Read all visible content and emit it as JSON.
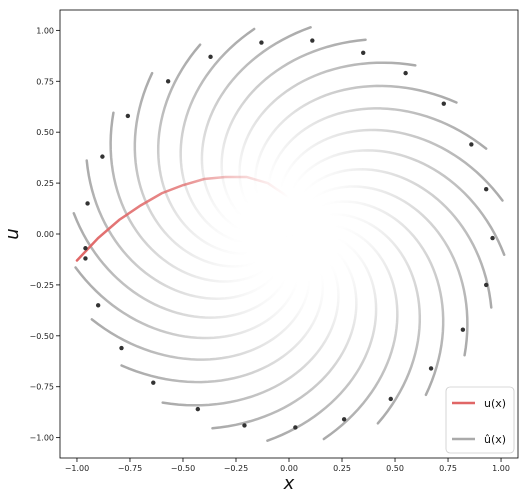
{
  "chart_data": {
    "type": "line",
    "xlabel": "x",
    "ylabel": "u",
    "xlim": [
      -1.08,
      1.08
    ],
    "ylim": [
      -1.1,
      1.1
    ],
    "xticks": [
      -1.0,
      -0.75,
      -0.5,
      -0.25,
      0.0,
      0.25,
      0.5,
      0.75,
      1.0
    ],
    "yticks": [
      -1.0,
      -0.75,
      -0.5,
      -0.25,
      0.0,
      0.25,
      0.5,
      0.75,
      1.0
    ],
    "xtick_labels": [
      "−1.00",
      "−0.75",
      "−0.50",
      "−0.25",
      "0.00",
      "0.25",
      "0.50",
      "0.75",
      "1.00"
    ],
    "ytick_labels": [
      "−1.00",
      "−0.75",
      "−0.50",
      "−0.25",
      "0.00",
      "0.25",
      "0.50",
      "0.75",
      "1.00"
    ],
    "grid": false,
    "legend_position": "lower-right",
    "colors": {
      "true": "#e06666",
      "pred": "#aaaaaa",
      "point": "#333333"
    },
    "series": [
      {
        "name": "u(x)",
        "legend_label": "u(x)",
        "color": "#e06666",
        "x": [
          -1.0,
          -0.9,
          -0.8,
          -0.7,
          -0.6,
          -0.5,
          -0.4,
          -0.3,
          -0.2,
          -0.1,
          0.0
        ],
        "y": [
          -0.13,
          -0.02,
          0.07,
          0.14,
          0.2,
          0.24,
          0.27,
          0.28,
          0.28,
          0.25,
          0.18
        ]
      },
      {
        "name": "û(x)",
        "legend_label": "û(x)",
        "color": "#aaaaaa",
        "description_spiral": {
          "arms": 24,
          "phase_step_deg": 15,
          "twist_total_deg": 115
        }
      }
    ],
    "points": [
      {
        "x": 0.96,
        "y": -0.02
      },
      {
        "x": 0.93,
        "y": 0.22
      },
      {
        "x": 0.86,
        "y": 0.44
      },
      {
        "x": 0.73,
        "y": 0.64
      },
      {
        "x": 0.55,
        "y": 0.79
      },
      {
        "x": 0.35,
        "y": 0.89
      },
      {
        "x": 0.11,
        "y": 0.95
      },
      {
        "x": -0.13,
        "y": 0.94
      },
      {
        "x": -0.37,
        "y": 0.87
      },
      {
        "x": -0.57,
        "y": 0.75
      },
      {
        "x": -0.76,
        "y": 0.58
      },
      {
        "x": -0.88,
        "y": 0.38
      },
      {
        "x": -0.95,
        "y": 0.15
      },
      {
        "x": -0.96,
        "y": -0.07
      },
      {
        "x": -0.96,
        "y": -0.12
      },
      {
        "x": -0.9,
        "y": -0.35
      },
      {
        "x": -0.79,
        "y": -0.56
      },
      {
        "x": -0.64,
        "y": -0.73
      },
      {
        "x": -0.43,
        "y": -0.86
      },
      {
        "x": -0.21,
        "y": -0.94
      },
      {
        "x": 0.03,
        "y": -0.95
      },
      {
        "x": 0.26,
        "y": -0.91
      },
      {
        "x": 0.48,
        "y": -0.81
      },
      {
        "x": 0.67,
        "y": -0.66
      },
      {
        "x": 0.82,
        "y": -0.47
      },
      {
        "x": 0.93,
        "y": -0.25
      }
    ]
  }
}
